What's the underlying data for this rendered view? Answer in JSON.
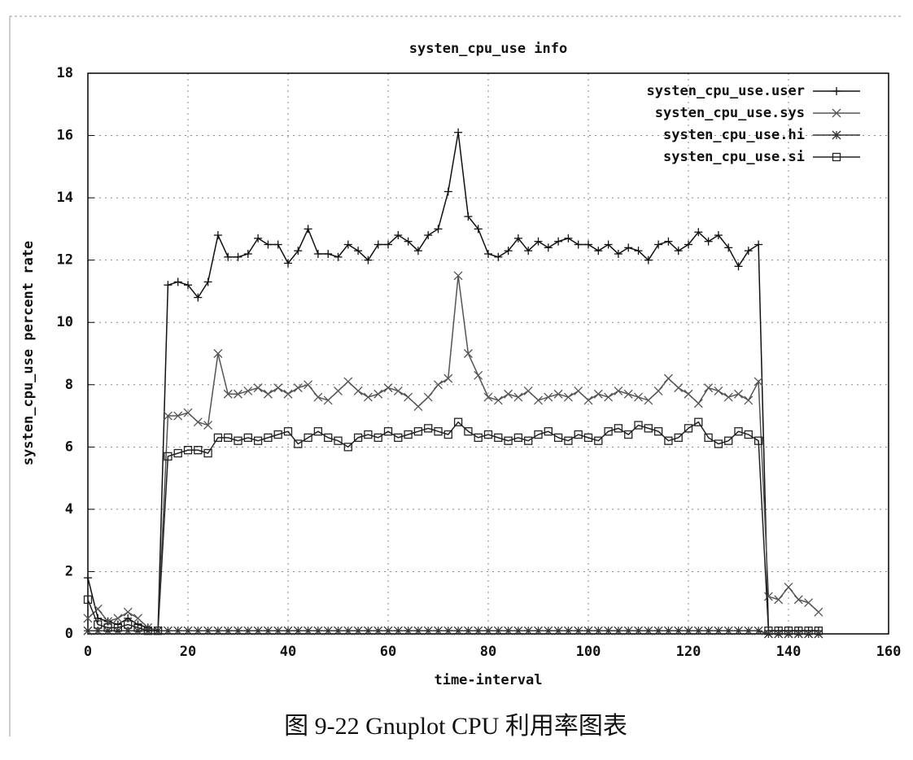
{
  "chart_data": {
    "type": "line",
    "title": "systen_cpu_use info",
    "x_label": "time-interval",
    "y_label": "systen_cpu_use percent rate",
    "caption": "图 9-22   Gnuplot CPU 利用率图表",
    "xlim": [
      0,
      160
    ],
    "xticks": [
      0,
      20,
      40,
      60,
      80,
      100,
      120,
      140,
      160
    ],
    "ylim": [
      0,
      18
    ],
    "yticks": [
      0,
      2,
      4,
      6,
      8,
      10,
      12,
      14,
      16,
      18
    ],
    "grid": true,
    "legend": "top-right",
    "x": [
      0,
      2,
      4,
      6,
      8,
      10,
      12,
      14,
      16,
      18,
      20,
      22,
      24,
      26,
      28,
      30,
      32,
      34,
      36,
      38,
      40,
      42,
      44,
      46,
      48,
      50,
      52,
      54,
      56,
      58,
      60,
      62,
      64,
      66,
      68,
      70,
      72,
      74,
      76,
      78,
      80,
      82,
      84,
      86,
      88,
      90,
      92,
      94,
      96,
      98,
      100,
      102,
      104,
      106,
      108,
      110,
      112,
      114,
      116,
      118,
      120,
      122,
      124,
      126,
      128,
      130,
      132,
      134,
      136,
      138,
      140,
      142,
      144,
      146
    ],
    "series": [
      {
        "name": "systen_cpu_use.user",
        "color": "#111111",
        "marker": "plus",
        "values": [
          1.8,
          0.5,
          0.4,
          0.3,
          0.5,
          0.3,
          0.2,
          0.1,
          11.2,
          11.3,
          11.2,
          10.8,
          11.3,
          12.8,
          12.1,
          12.1,
          12.2,
          12.7,
          12.5,
          12.5,
          11.9,
          12.3,
          13.0,
          12.2,
          12.2,
          12.1,
          12.5,
          12.3,
          12.0,
          12.5,
          12.5,
          12.8,
          12.6,
          12.3,
          12.8,
          13.0,
          14.2,
          16.1,
          13.4,
          13.0,
          12.2,
          12.1,
          12.3,
          12.7,
          12.3,
          12.6,
          12.4,
          12.6,
          12.7,
          12.5,
          12.5,
          12.3,
          12.5,
          12.2,
          12.4,
          12.3,
          12.0,
          12.5,
          12.6,
          12.3,
          12.5,
          12.9,
          12.6,
          12.8,
          12.4,
          11.8,
          12.3,
          12.5,
          0.1,
          0.1,
          0.1,
          0.1,
          0.1,
          0.1
        ]
      },
      {
        "name": "systen_cpu_use.sys",
        "color": "#555555",
        "marker": "cross",
        "values": [
          0.5,
          0.8,
          0.4,
          0.5,
          0.7,
          0.5,
          0.2,
          0.1,
          7.0,
          7.0,
          7.1,
          6.8,
          6.7,
          9.0,
          7.7,
          7.7,
          7.8,
          7.9,
          7.7,
          7.9,
          7.7,
          7.9,
          8.0,
          7.6,
          7.5,
          7.8,
          8.1,
          7.8,
          7.6,
          7.7,
          7.9,
          7.8,
          7.6,
          7.3,
          7.6,
          8.0,
          8.2,
          11.5,
          9.0,
          8.3,
          7.6,
          7.5,
          7.7,
          7.6,
          7.8,
          7.5,
          7.6,
          7.7,
          7.6,
          7.8,
          7.5,
          7.7,
          7.6,
          7.8,
          7.7,
          7.6,
          7.5,
          7.8,
          8.2,
          7.9,
          7.7,
          7.4,
          7.9,
          7.8,
          7.6,
          7.7,
          7.5,
          8.1,
          1.2,
          1.1,
          1.5,
          1.1,
          1.0,
          0.7
        ]
      },
      {
        "name": "systen_cpu_use.hi",
        "color": "#333333",
        "marker": "star",
        "values": [
          0.1,
          0.1,
          0.1,
          0.1,
          0.1,
          0.1,
          0.1,
          0.1,
          0.1,
          0.1,
          0.1,
          0.1,
          0.1,
          0.1,
          0.1,
          0.1,
          0.1,
          0.1,
          0.1,
          0.1,
          0.1,
          0.1,
          0.1,
          0.1,
          0.1,
          0.1,
          0.1,
          0.1,
          0.1,
          0.1,
          0.1,
          0.1,
          0.1,
          0.1,
          0.1,
          0.1,
          0.1,
          0.1,
          0.1,
          0.1,
          0.1,
          0.1,
          0.1,
          0.1,
          0.1,
          0.1,
          0.1,
          0.1,
          0.1,
          0.1,
          0.1,
          0.1,
          0.1,
          0.1,
          0.1,
          0.1,
          0.1,
          0.1,
          0.1,
          0.1,
          0.1,
          0.1,
          0.1,
          0.1,
          0.1,
          0.1,
          0.1,
          0.1,
          0,
          0,
          0,
          0,
          0,
          0
        ]
      },
      {
        "name": "systen_cpu_use.si",
        "color": "#222222",
        "marker": "square",
        "values": [
          1.1,
          0.3,
          0.2,
          0.2,
          0.3,
          0.2,
          0.1,
          0.1,
          5.7,
          5.8,
          5.9,
          5.9,
          5.8,
          6.3,
          6.3,
          6.2,
          6.3,
          6.2,
          6.3,
          6.4,
          6.5,
          6.1,
          6.3,
          6.5,
          6.3,
          6.2,
          6.0,
          6.3,
          6.4,
          6.3,
          6.5,
          6.3,
          6.4,
          6.5,
          6.6,
          6.5,
          6.4,
          6.8,
          6.5,
          6.3,
          6.4,
          6.3,
          6.2,
          6.3,
          6.2,
          6.4,
          6.5,
          6.3,
          6.2,
          6.4,
          6.3,
          6.2,
          6.5,
          6.6,
          6.4,
          6.7,
          6.6,
          6.5,
          6.2,
          6.3,
          6.6,
          6.8,
          6.3,
          6.1,
          6.2,
          6.5,
          6.4,
          6.2,
          0.1,
          0.1,
          0.1,
          0.1,
          0.1,
          0.1
        ]
      }
    ]
  }
}
